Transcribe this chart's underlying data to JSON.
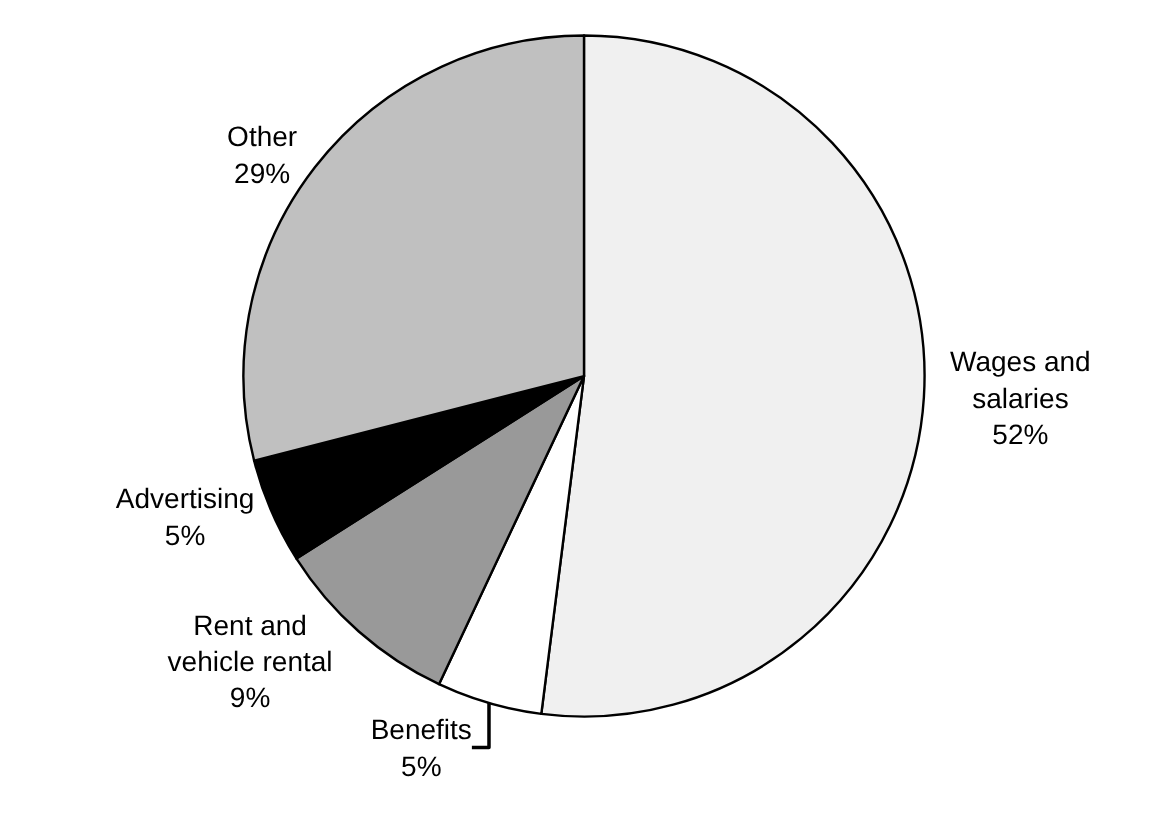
{
  "chart_data": {
    "type": "pie",
    "categories": [
      "Wages and salaries",
      "Benefits",
      "Rent and vehicle rental",
      "Advertising",
      "Other"
    ],
    "values": [
      52,
      5,
      9,
      5,
      29
    ],
    "value_labels": [
      "52%",
      "5%",
      "9%",
      "5%",
      "29%"
    ],
    "colors": [
      "#f0f0f0",
      "#ffffff",
      "#999999",
      "#000000",
      "#c0c0c0"
    ],
    "legend": false
  }
}
